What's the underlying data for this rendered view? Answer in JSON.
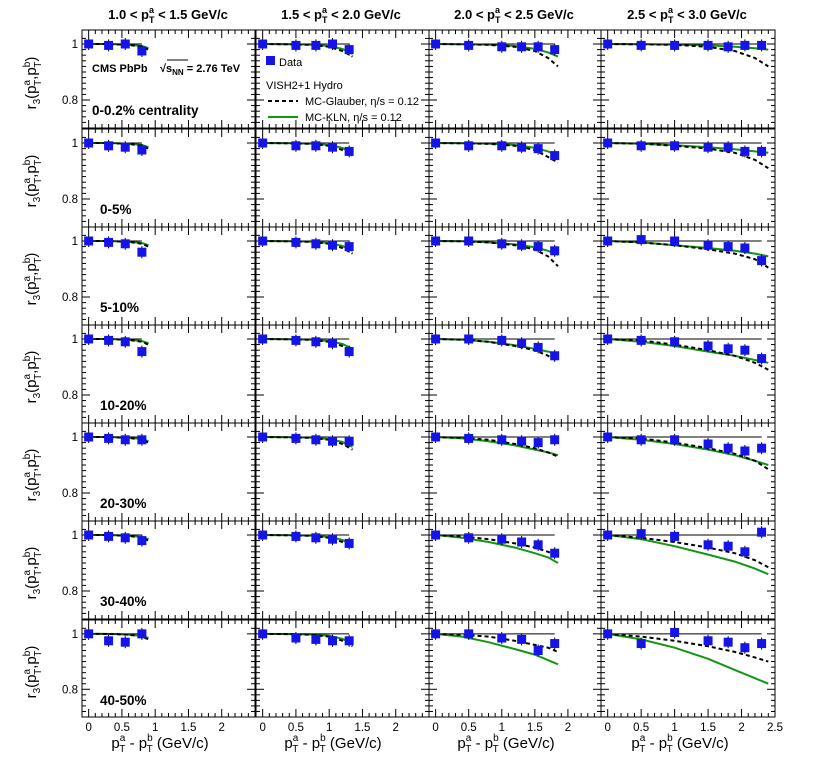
{
  "chart_data": {
    "type": "scatter",
    "experiment": "CMS PbPb",
    "energy_prefix": "√s",
    "energy_sub": "NN",
    "energy_value": " = 2.76 TeV",
    "legend": {
      "data_label": "Data",
      "model_title": "VISH2+1 Hydro",
      "glauber_label": "MC-Glauber, η/s = 0.12",
      "kln_label": "MC-KLN, η/s = 0.12"
    },
    "columns": [
      {
        "pre": "1.0 < p",
        "sup": "a",
        "sub": "T",
        "post": " < 1.5 GeV/c"
      },
      {
        "pre": "1.5 < p",
        "sup": "a",
        "sub": "T",
        "post": " < 2.0 GeV/c"
      },
      {
        "pre": "2.0 < p",
        "sup": "a",
        "sub": "T",
        "post": " < 2.5 GeV/c"
      },
      {
        "pre": "2.5 < p",
        "sup": "a",
        "sub": "T",
        "post": " < 3.0 GeV/c"
      }
    ],
    "rows": [
      "0-0.2% centrality",
      "0-5%",
      "5-10%",
      "10-20%",
      "20-30%",
      "30-40%",
      "40-50%"
    ],
    "y_label": "r3(paT,pbT)",
    "x_label": "paT - pbT (GeV/c)",
    "xlim": [
      -0.1,
      2.5
    ],
    "ylim": [
      0.7,
      1.05
    ],
    "y_ticks": [
      "0.8",
      "1"
    ],
    "x_tick_values": [
      0,
      0.5,
      1,
      1.5,
      2,
      2.5
    ],
    "x_tick_labels_col": [
      "0",
      "0.5",
      "1",
      "1.5",
      "2"
    ],
    "x_tick_labels_last": [
      "0",
      "0.5",
      "1",
      "1.5",
      "2",
      "2.5"
    ],
    "data_x": [
      [
        0.0,
        0.3,
        0.55,
        0.8
      ],
      [
        0.0,
        0.5,
        0.8,
        1.05,
        1.3
      ],
      [
        0.0,
        0.5,
        1.0,
        1.3,
        1.55,
        1.8
      ],
      [
        0.0,
        0.5,
        1.0,
        1.5,
        1.8,
        2.05,
        2.3
      ]
    ],
    "data_y": [
      [
        [
          1.0,
          0.995,
          1.0,
          0.975
        ],
        [
          1.0,
          0.995,
          0.995,
          1.0,
          0.98
        ],
        [
          1.0,
          0.995,
          0.99,
          0.99,
          0.99,
          0.98
        ],
        [
          1.0,
          0.995,
          0.995,
          0.995,
          0.99,
          0.995,
          0.995
        ]
      ],
      [
        [
          1.0,
          0.99,
          0.985,
          0.975
        ],
        [
          1.0,
          0.99,
          0.99,
          0.985,
          0.97
        ],
        [
          1.0,
          0.99,
          0.99,
          0.985,
          0.98,
          0.955
        ],
        [
          1.0,
          0.99,
          0.99,
          0.985,
          0.985,
          0.97,
          0.97
        ]
      ],
      [
        [
          1.0,
          0.995,
          0.99,
          0.96
        ],
        [
          1.0,
          0.995,
          0.99,
          0.985,
          0.98
        ],
        [
          1.0,
          1.0,
          0.99,
          0.985,
          0.98,
          0.965
        ],
        [
          1.0,
          1.005,
          1.0,
          0.985,
          0.98,
          0.975,
          0.93
        ]
      ],
      [
        [
          1.0,
          0.995,
          0.99,
          0.955
        ],
        [
          1.0,
          0.995,
          0.99,
          0.985,
          0.955
        ],
        [
          1.0,
          1.0,
          0.995,
          0.985,
          0.97,
          0.94
        ],
        [
          1.0,
          0.995,
          0.99,
          0.975,
          0.965,
          0.96,
          0.93
        ]
      ],
      [
        [
          1.0,
          0.995,
          0.99,
          0.99
        ],
        [
          1.0,
          0.995,
          0.99,
          0.985,
          0.985
        ],
        [
          1.0,
          0.995,
          0.99,
          0.985,
          0.98,
          0.99
        ],
        [
          1.0,
          0.99,
          0.99,
          0.975,
          0.96,
          0.95,
          0.96
        ]
      ],
      [
        [
          1.0,
          0.995,
          0.99,
          0.98
        ],
        [
          1.0,
          0.995,
          0.99,
          0.985,
          0.97
        ],
        [
          1.0,
          0.99,
          0.985,
          0.975,
          0.965,
          0.935
        ],
        [
          1.0,
          1.005,
          0.995,
          0.965,
          0.96,
          0.94,
          1.01
        ]
      ],
      [
        [
          1.0,
          0.975,
          0.97,
          1.0
        ],
        [
          1.0,
          0.985,
          0.98,
          0.975,
          0.975
        ],
        [
          1.0,
          1.0,
          0.985,
          0.98,
          0.94,
          0.965
        ],
        [
          1.0,
          0.965,
          1.005,
          0.975,
          0.97,
          0.95,
          0.965
        ]
      ]
    ],
    "model_x": [
      [
        0.0,
        0.2,
        0.4,
        0.6,
        0.8,
        0.9
      ],
      [
        0.0,
        0.4,
        0.7,
        1.0,
        1.2,
        1.35
      ],
      [
        0.0,
        0.4,
        0.8,
        1.2,
        1.5,
        1.7,
        1.85
      ],
      [
        0.0,
        0.5,
        1.0,
        1.5,
        1.9,
        2.2,
        2.4
      ]
    ],
    "glauber": [
      [
        [
          1.0,
          1.0,
          0.999,
          0.997,
          0.99,
          0.98
        ],
        [
          1.0,
          0.999,
          0.997,
          0.99,
          0.975,
          0.955
        ],
        [
          1.0,
          0.999,
          0.997,
          0.99,
          0.975,
          0.95,
          0.92
        ],
        [
          1.0,
          0.999,
          0.997,
          0.99,
          0.975,
          0.95,
          0.92
        ]
      ],
      [
        [
          1.0,
          1.0,
          0.999,
          0.997,
          0.99,
          0.98
        ],
        [
          1.0,
          0.999,
          0.997,
          0.99,
          0.975,
          0.955
        ],
        [
          1.0,
          0.999,
          0.997,
          0.99,
          0.975,
          0.95,
          0.93
        ],
        [
          1.0,
          0.998,
          0.99,
          0.98,
          0.965,
          0.94,
          0.91
        ]
      ],
      [
        [
          1.0,
          1.0,
          0.999,
          0.997,
          0.99,
          0.98
        ],
        [
          1.0,
          0.999,
          0.997,
          0.99,
          0.975,
          0.955
        ],
        [
          1.0,
          0.999,
          0.995,
          0.985,
          0.97,
          0.945,
          0.91
        ],
        [
          1.0,
          0.995,
          0.985,
          0.97,
          0.955,
          0.935,
          0.905
        ]
      ],
      [
        [
          1.0,
          1.0,
          0.999,
          0.997,
          0.99,
          0.98
        ],
        [
          1.0,
          0.999,
          0.997,
          0.99,
          0.975,
          0.955
        ],
        [
          1.0,
          0.998,
          0.99,
          0.975,
          0.96,
          0.94,
          0.92
        ],
        [
          1.0,
          0.995,
          0.98,
          0.96,
          0.94,
          0.915,
          0.89
        ]
      ],
      [
        [
          1.0,
          1.0,
          0.999,
          0.997,
          0.99,
          0.98
        ],
        [
          1.0,
          0.999,
          0.997,
          0.99,
          0.975,
          0.955
        ],
        [
          1.0,
          0.997,
          0.99,
          0.975,
          0.96,
          0.945,
          0.93
        ],
        [
          1.0,
          0.995,
          0.98,
          0.96,
          0.94,
          0.915,
          0.885
        ]
      ],
      [
        [
          1.0,
          1.0,
          0.999,
          0.997,
          0.99,
          0.98
        ],
        [
          1.0,
          0.999,
          0.997,
          0.99,
          0.975,
          0.955
        ],
        [
          1.0,
          0.995,
          0.985,
          0.97,
          0.955,
          0.94,
          0.925
        ],
        [
          1.0,
          0.99,
          0.975,
          0.955,
          0.935,
          0.91,
          0.885
        ]
      ],
      [
        [
          1.0,
          1.0,
          0.999,
          0.997,
          0.99,
          0.98
        ],
        [
          1.0,
          0.999,
          0.997,
          0.99,
          0.975,
          0.955
        ],
        [
          1.0,
          0.997,
          0.99,
          0.975,
          0.96,
          0.95,
          0.935
        ],
        [
          1.0,
          0.99,
          0.975,
          0.955,
          0.935,
          0.915,
          0.9
        ]
      ]
    ],
    "kln": [
      [
        [
          1.0,
          1.0,
          0.999,
          0.997,
          0.993,
          0.985
        ],
        [
          1.0,
          0.999,
          0.998,
          0.993,
          0.982,
          0.965
        ],
        [
          1.0,
          0.999,
          0.998,
          0.993,
          0.983,
          0.97,
          0.955
        ],
        [
          1.0,
          0.999,
          0.998,
          0.995,
          0.99,
          0.985,
          0.98
        ]
      ],
      [
        [
          1.0,
          1.0,
          0.999,
          0.997,
          0.993,
          0.985
        ],
        [
          1.0,
          0.999,
          0.998,
          0.993,
          0.982,
          0.965
        ],
        [
          1.0,
          0.999,
          0.998,
          0.993,
          0.983,
          0.97,
          0.955
        ],
        [
          1.0,
          0.997,
          0.992,
          0.985,
          0.978,
          0.97,
          0.965
        ]
      ],
      [
        [
          1.0,
          1.0,
          0.999,
          0.997,
          0.993,
          0.985
        ],
        [
          1.0,
          0.999,
          0.998,
          0.993,
          0.982,
          0.965
        ],
        [
          1.0,
          0.999,
          0.995,
          0.988,
          0.978,
          0.965,
          0.95
        ],
        [
          1.0,
          0.995,
          0.985,
          0.975,
          0.965,
          0.955,
          0.945
        ]
      ],
      [
        [
          1.0,
          1.0,
          0.999,
          0.997,
          0.993,
          0.985
        ],
        [
          1.0,
          0.999,
          0.998,
          0.993,
          0.982,
          0.965
        ],
        [
          1.0,
          0.997,
          0.99,
          0.978,
          0.965,
          0.955,
          0.945
        ],
        [
          1.0,
          0.99,
          0.975,
          0.955,
          0.94,
          0.925,
          0.915
        ]
      ],
      [
        [
          1.0,
          1.0,
          0.999,
          0.997,
          0.993,
          0.985
        ],
        [
          1.0,
          0.999,
          0.998,
          0.993,
          0.982,
          0.965
        ],
        [
          1.0,
          0.995,
          0.985,
          0.97,
          0.955,
          0.945,
          0.935
        ],
        [
          1.0,
          0.99,
          0.975,
          0.955,
          0.935,
          0.915,
          0.9
        ]
      ],
      [
        [
          1.0,
          1.0,
          0.999,
          0.997,
          0.993,
          0.985
        ],
        [
          1.0,
          0.999,
          0.998,
          0.993,
          0.982,
          0.965
        ],
        [
          1.0,
          0.99,
          0.975,
          0.955,
          0.935,
          0.92,
          0.9
        ],
        [
          1.0,
          0.985,
          0.96,
          0.93,
          0.905,
          0.88,
          0.86
        ]
      ],
      [
        [
          1.0,
          1.0,
          0.999,
          0.997,
          0.993,
          0.985
        ],
        [
          1.0,
          0.999,
          0.998,
          0.993,
          0.982,
          0.965
        ],
        [
          1.0,
          0.99,
          0.97,
          0.945,
          0.925,
          0.905,
          0.89
        ],
        [
          1.0,
          0.98,
          0.95,
          0.91,
          0.87,
          0.84,
          0.82
        ]
      ]
    ],
    "colors": {
      "data": "#1414e6",
      "glauber": "#000000",
      "kln": "#149614",
      "axes": "#000000"
    }
  }
}
